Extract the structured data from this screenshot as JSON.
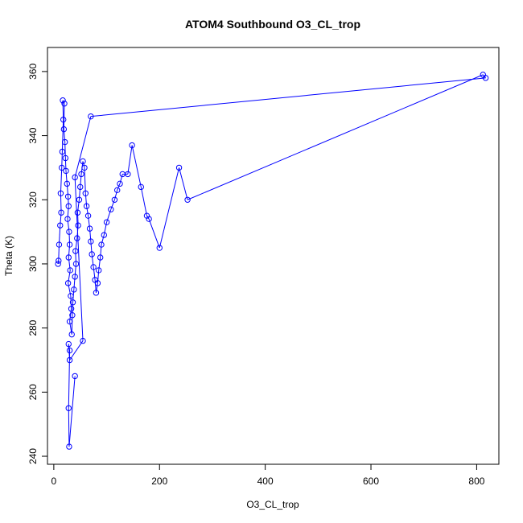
{
  "chart_data": {
    "type": "line",
    "title": "ATOM4 Southbound O3_CL_trop",
    "xlabel": "O3_CL_trop",
    "ylabel": "Theta (K)",
    "xlim": [
      -12,
      842
    ],
    "ylim": [
      237.5,
      367.5
    ],
    "x_ticks": [
      0,
      200,
      400,
      600,
      800
    ],
    "y_ticks": [
      240,
      260,
      280,
      300,
      320,
      340,
      360
    ],
    "x_tick_labels": [
      "0",
      "200",
      "400",
      "600",
      "800"
    ],
    "y_tick_labels": [
      "240",
      "260",
      "280",
      "300",
      "320",
      "340",
      "360"
    ],
    "grid": false,
    "legend": "none",
    "series_color": "#0000ff",
    "series": [
      {
        "marker": "open-circle",
        "x": [
          8,
          9,
          10,
          12,
          14,
          13,
          15,
          16,
          18,
          17,
          20,
          19,
          21,
          22,
          23,
          25,
          27,
          28,
          26,
          29,
          30,
          28,
          31,
          27,
          32,
          33,
          30,
          34,
          35,
          36,
          38,
          40,
          42,
          41,
          44,
          46,
          45,
          48,
          50,
          52,
          55,
          58,
          60,
          62,
          65,
          68,
          70,
          72,
          75,
          78,
          80,
          83,
          85,
          88,
          90,
          95,
          100,
          108,
          115,
          120,
          125,
          130,
          140,
          148,
          165,
          176,
          180,
          200,
          237,
          253,
          812,
          817,
          70,
          40,
          55,
          30,
          28,
          30,
          28,
          29,
          40
        ],
        "y": [
          300,
          301,
          306,
          312,
          316,
          322,
          330,
          335,
          345,
          351,
          350,
          342,
          338,
          333,
          329,
          325,
          321,
          318,
          314,
          310,
          306,
          302,
          298,
          294,
          290,
          286,
          282,
          278,
          284,
          288,
          292,
          296,
          300,
          304,
          308,
          312,
          316,
          320,
          324,
          328,
          332,
          330,
          322,
          318,
          315,
          311,
          307,
          303,
          299,
          295,
          291,
          294,
          298,
          302,
          306,
          309,
          313,
          317,
          320,
          323,
          325,
          328,
          328,
          337,
          324,
          315,
          314,
          305,
          330,
          320,
          359,
          358,
          346,
          327,
          276,
          270,
          275,
          273,
          255,
          243,
          265
        ]
      }
    ]
  }
}
